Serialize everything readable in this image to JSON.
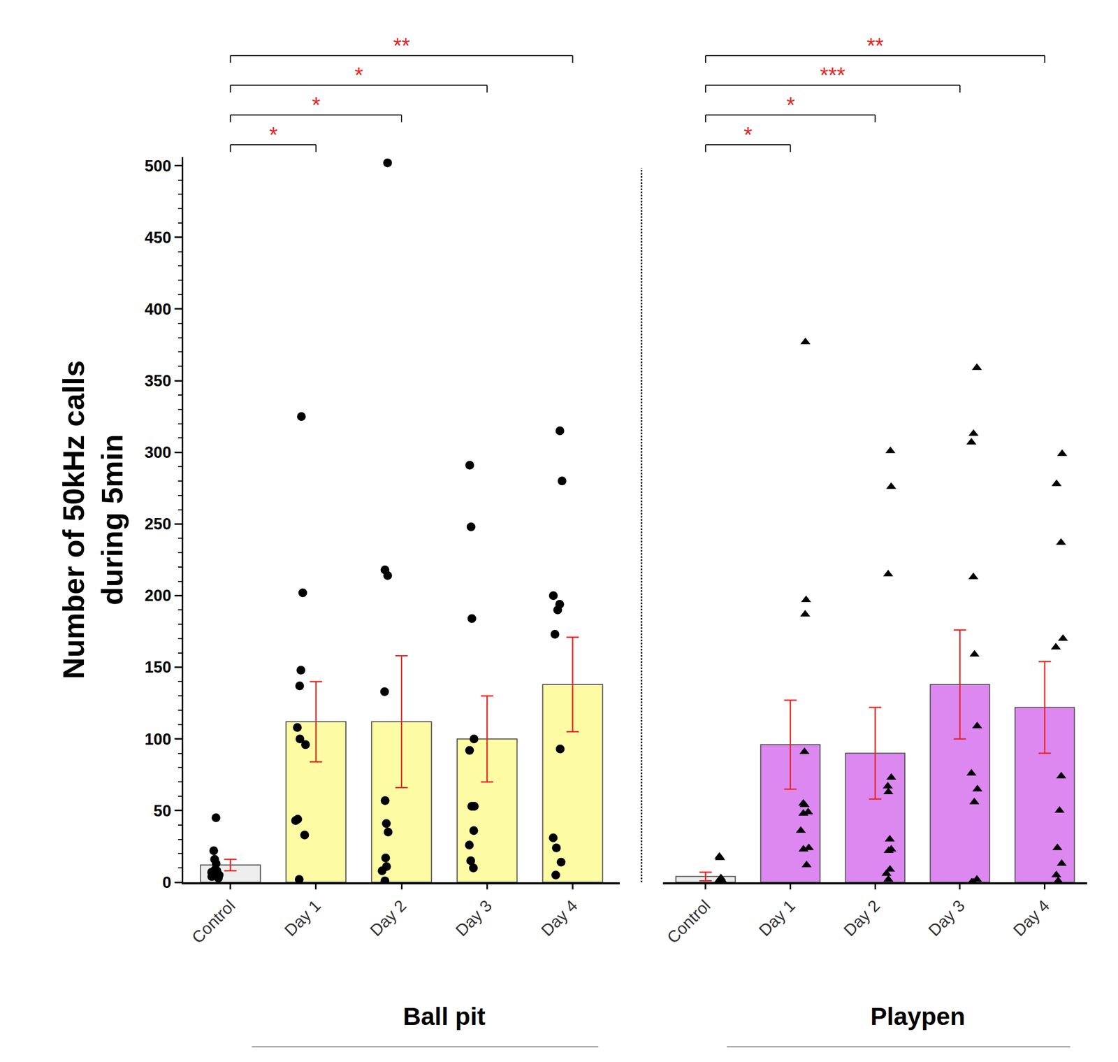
{
  "chart_data": {
    "type": "bar",
    "ylabel": [
      "Number of 50kHz calls",
      "during 5min"
    ],
    "ylim": [
      0,
      506
    ],
    "yticks": [
      0,
      50,
      100,
      150,
      200,
      250,
      300,
      350,
      400,
      450,
      500
    ],
    "categories": [
      "Control",
      "Day 1",
      "Day 2",
      "Day 3",
      "Day 4"
    ],
    "series": [
      {
        "name": "Ball pit",
        "colors": [
          "#eeeeee",
          "#fdfca4",
          "#fdfca4",
          "#fdfca4",
          "#fdfca4"
        ],
        "marker": "circle",
        "values": [
          12,
          112,
          112,
          100,
          138
        ],
        "errors": [
          4,
          28,
          46,
          30,
          33
        ],
        "points": [
          [
            45,
            22,
            16,
            13,
            9,
            8,
            8,
            7,
            5,
            4,
            3
          ],
          [
            325,
            202,
            148,
            137,
            108,
            100,
            96,
            44,
            43,
            33,
            2
          ],
          [
            502,
            218,
            214,
            133,
            57,
            41,
            35,
            17,
            11,
            8,
            1
          ],
          [
            291,
            248,
            184,
            100,
            92,
            53,
            53,
            36,
            26,
            15,
            10
          ],
          [
            315,
            280,
            200,
            194,
            190,
            173,
            93,
            31,
            24,
            14,
            5
          ]
        ],
        "comparisons": [
          {
            "from": "Control",
            "to": "Day 1",
            "label": "*"
          },
          {
            "from": "Control",
            "to": "Day 2",
            "label": "*"
          },
          {
            "from": "Control",
            "to": "Day 3",
            "label": "*"
          },
          {
            "from": "Control",
            "to": "Day 4",
            "label": "**"
          }
        ]
      },
      {
        "name": "Playpen",
        "colors": [
          "#eeeeee",
          "#dc88f0",
          "#dc88f0",
          "#dc88f0",
          "#dc88f0"
        ],
        "marker": "triangle",
        "values": [
          4,
          96,
          90,
          138,
          122
        ],
        "errors": [
          3,
          31,
          32,
          38,
          32
        ],
        "points": [
          [
            18,
            17,
            3,
            2,
            1,
            1,
            0,
            0,
            0,
            0
          ],
          [
            377,
            197,
            187,
            91,
            55,
            54,
            49,
            48,
            36,
            24,
            23,
            12
          ],
          [
            301,
            276,
            215,
            73,
            67,
            63,
            30,
            23,
            22,
            9,
            6,
            2
          ],
          [
            359,
            313,
            307,
            213,
            159,
            109,
            76,
            65,
            56,
            2,
            0,
            0
          ],
          [
            299,
            278,
            237,
            170,
            164,
            74,
            50,
            24,
            13,
            5,
            1
          ]
        ],
        "comparisons": [
          {
            "from": "Control",
            "to": "Day 1",
            "label": "*"
          },
          {
            "from": "Control",
            "to": "Day 2",
            "label": "*"
          },
          {
            "from": "Control",
            "to": "Day 3",
            "label": "***"
          },
          {
            "from": "Control",
            "to": "Day 4",
            "label": "**"
          }
        ]
      }
    ]
  }
}
